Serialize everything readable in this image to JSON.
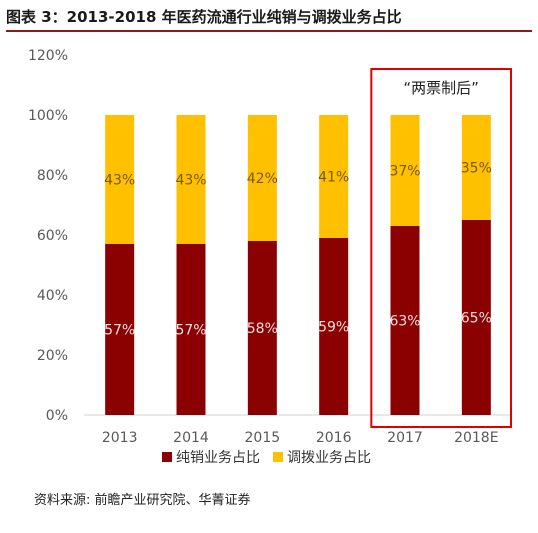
{
  "header": {
    "title": "图表 3：2013-2018 年医药流通行业纯销与调拨业务占比"
  },
  "footer": {
    "source": "资料来源: 前瞻产业研究院、华菁证券"
  },
  "annotation": {
    "text": "“两票制后”",
    "highlight_color": "#e00000"
  },
  "chart_data": {
    "type": "bar",
    "stacked": true,
    "categories": [
      "2013",
      "2014",
      "2015",
      "2016",
      "2017",
      "2018E"
    ],
    "series": [
      {
        "name": "纯销业务占比",
        "values": [
          57,
          57,
          58,
          59,
          63,
          65
        ],
        "labels": [
          "57%",
          "57%",
          "58%",
          "59%",
          "63%",
          "65%"
        ],
        "color": "#8b0000"
      },
      {
        "name": "调拨业务占比",
        "values": [
          43,
          43,
          42,
          41,
          37,
          35
        ],
        "labels": [
          "43%",
          "43%",
          "42%",
          "41%",
          "37%",
          "35%"
        ],
        "color": "#ffc000"
      }
    ],
    "yticks": [
      "0%",
      "20%",
      "40%",
      "60%",
      "80%",
      "100%",
      "120%"
    ],
    "ylim": [
      0,
      120
    ],
    "highlighted_categories": [
      "2017",
      "2018E"
    ],
    "legend_position": "bottom",
    "grid": false
  }
}
